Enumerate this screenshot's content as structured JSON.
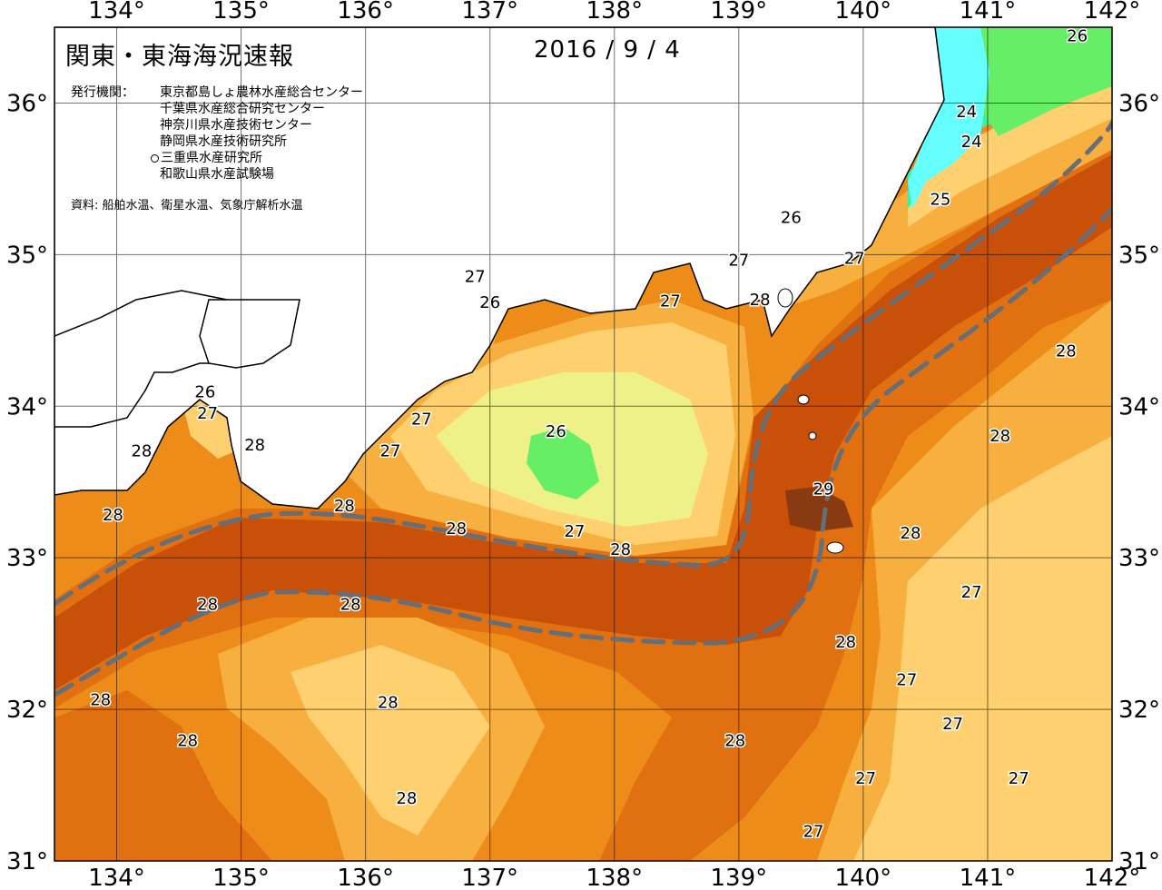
{
  "header": {
    "title": "関東・東海海況速報",
    "date": "2016 / 9 / 4"
  },
  "issuers": {
    "label": "発行機関：",
    "items": [
      "東京都島しょ農林水産総合センター",
      "千葉県水産総合研究センター",
      "神奈川県水産技術センター",
      "静岡県水産技術研究所",
      "三重県水産研究所",
      "和歌山県水産試験場"
    ],
    "marked_index": 4
  },
  "source": "資料: 船舶水温、衛星水温、気象庁解析水温",
  "axes": {
    "longitudes": [
      "134°",
      "135°",
      "136°",
      "137°",
      "138°",
      "139°",
      "140°",
      "141°",
      "142°"
    ],
    "latitudes": [
      "36°",
      "35°",
      "34°",
      "33°",
      "32°",
      "31°"
    ]
  },
  "map_data": {
    "type": "sea-surface-temperature contour map",
    "lon_range": [
      133.5,
      142
    ],
    "lat_range": [
      31,
      36.5
    ],
    "grid": true,
    "colors": {
      "t24": "#66ffff",
      "t25": "#44ee99",
      "t26": "#66ee66",
      "t26_5": "#eef088",
      "t27": "#ffd070",
      "t27_5": "#f7b040",
      "t28": "#ee8c1a",
      "t28_5": "#e07010",
      "t29": "#c85008",
      "t29_5": "#8a3a10",
      "land": "#ffffff",
      "kuroshio_path": "#666e78"
    },
    "contour_labels": [
      {
        "text": "26",
        "lon": 141.72,
        "lat": 36.45
      },
      {
        "text": "24",
        "lon": 140.83,
        "lat": 35.95
      },
      {
        "text": "24",
        "lon": 140.87,
        "lat": 35.75
      },
      {
        "text": "25",
        "lon": 140.62,
        "lat": 35.37
      },
      {
        "text": "26",
        "lon": 139.42,
        "lat": 35.25
      },
      {
        "text": "27",
        "lon": 139.0,
        "lat": 34.97
      },
      {
        "text": "27",
        "lon": 139.93,
        "lat": 34.98
      },
      {
        "text": "27",
        "lon": 136.88,
        "lat": 34.86
      },
      {
        "text": "26",
        "lon": 137.0,
        "lat": 34.69
      },
      {
        "text": "27",
        "lon": 138.45,
        "lat": 34.7
      },
      {
        "text": "28",
        "lon": 139.17,
        "lat": 34.71
      },
      {
        "text": "28",
        "lon": 141.63,
        "lat": 34.37
      },
      {
        "text": "26",
        "lon": 134.71,
        "lat": 34.1
      },
      {
        "text": "27",
        "lon": 134.73,
        "lat": 33.96
      },
      {
        "text": "27",
        "lon": 136.45,
        "lat": 33.92
      },
      {
        "text": "26",
        "lon": 137.53,
        "lat": 33.84
      },
      {
        "text": "28",
        "lon": 141.1,
        "lat": 33.81
      },
      {
        "text": "28",
        "lon": 135.11,
        "lat": 33.75
      },
      {
        "text": "28",
        "lon": 134.2,
        "lat": 33.71
      },
      {
        "text": "27",
        "lon": 136.2,
        "lat": 33.71
      },
      {
        "text": "29",
        "lon": 139.68,
        "lat": 33.46
      },
      {
        "text": "28",
        "lon": 135.83,
        "lat": 33.35
      },
      {
        "text": "28",
        "lon": 133.97,
        "lat": 33.29
      },
      {
        "text": "28",
        "lon": 136.73,
        "lat": 33.2
      },
      {
        "text": "27",
        "lon": 137.68,
        "lat": 33.18
      },
      {
        "text": "28",
        "lon": 140.38,
        "lat": 33.17
      },
      {
        "text": "28",
        "lon": 138.05,
        "lat": 33.06
      },
      {
        "text": "27",
        "lon": 140.87,
        "lat": 32.78
      },
      {
        "text": "28",
        "lon": 134.73,
        "lat": 32.7
      },
      {
        "text": "28",
        "lon": 135.88,
        "lat": 32.7
      },
      {
        "text": "28",
        "lon": 139.86,
        "lat": 32.45
      },
      {
        "text": "27",
        "lon": 140.35,
        "lat": 32.2
      },
      {
        "text": "28",
        "lon": 133.87,
        "lat": 32.07
      },
      {
        "text": "28",
        "lon": 136.18,
        "lat": 32.05
      },
      {
        "text": "27",
        "lon": 140.72,
        "lat": 31.91
      },
      {
        "text": "28",
        "lon": 134.57,
        "lat": 31.8
      },
      {
        "text": "28",
        "lon": 138.97,
        "lat": 31.8
      },
      {
        "text": "27",
        "lon": 141.25,
        "lat": 31.55
      },
      {
        "text": "28",
        "lon": 136.33,
        "lat": 31.42
      },
      {
        "text": "27",
        "lon": 140.02,
        "lat": 31.55
      },
      {
        "text": "27",
        "lon": 139.6,
        "lat": 31.2
      }
    ]
  }
}
